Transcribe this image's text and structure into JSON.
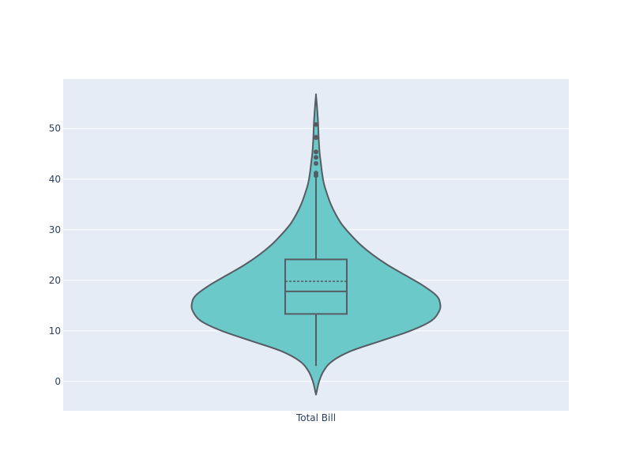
{
  "chart_data": {
    "type": "violin",
    "title": "",
    "xlabel": "",
    "ylabel": "",
    "categories": [
      "Total Bill"
    ],
    "ylim": [
      -5.8,
      59.8
    ],
    "y_ticks": [
      0,
      10,
      20,
      30,
      40,
      50
    ],
    "y_tick_labels": [
      "0",
      "10",
      "20",
      "30",
      "40",
      "50"
    ],
    "grid": true,
    "legend": "none",
    "colors": {
      "fill": "#6cc9c9",
      "line": "#555c63",
      "plot_bg": "#e5ecf6",
      "grid": "#ffffff",
      "text": "#2a3f5f"
    },
    "violin": {
      "density_min": -2.6,
      "density_max": 56.6,
      "profile": [
        [
          -2.6,
          0.0
        ],
        [
          -1.5,
          0.01
        ],
        [
          0.0,
          0.025
        ],
        [
          2.0,
          0.06
        ],
        [
          4.0,
          0.13
        ],
        [
          6.0,
          0.28
        ],
        [
          8.0,
          0.52
        ],
        [
          10.0,
          0.76
        ],
        [
          12.0,
          0.93
        ],
        [
          14.0,
          0.995
        ],
        [
          15.5,
          1.0
        ],
        [
          17.0,
          0.97
        ],
        [
          19.0,
          0.86
        ],
        [
          21.0,
          0.72
        ],
        [
          23.0,
          0.58
        ],
        [
          25.0,
          0.46
        ],
        [
          27.0,
          0.36
        ],
        [
          29.0,
          0.28
        ],
        [
          31.0,
          0.21
        ],
        [
          33.0,
          0.16
        ],
        [
          35.0,
          0.12
        ],
        [
          37.0,
          0.09
        ],
        [
          39.0,
          0.065
        ],
        [
          41.0,
          0.05
        ],
        [
          43.0,
          0.04
        ],
        [
          45.0,
          0.03
        ],
        [
          47.0,
          0.024
        ],
        [
          49.0,
          0.02
        ],
        [
          51.0,
          0.017
        ],
        [
          53.0,
          0.012
        ],
        [
          55.0,
          0.006
        ],
        [
          56.6,
          0.0
        ]
      ]
    },
    "box": {
      "q1": 13.35,
      "median": 17.8,
      "mean": 19.79,
      "q3": 24.13,
      "lower_fence": 3.07,
      "upper_fence": 40.55
    },
    "outliers": [
      40.7,
      41.2,
      43.1,
      44.3,
      45.4,
      48.2,
      48.3,
      50.8
    ]
  }
}
